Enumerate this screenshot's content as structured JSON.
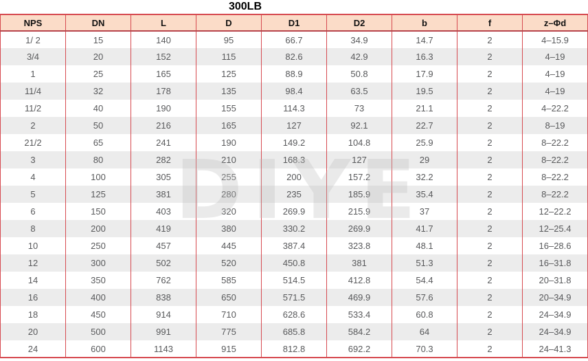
{
  "title": "300LB",
  "watermark": "DIYE",
  "colors": {
    "border_red": "#d6494f",
    "header_underline": "#b8444c",
    "header_bg": "#fbdcc8",
    "alt_row_bg": "#ececec",
    "data_text": "#58595b",
    "header_text": "#111111"
  },
  "table": {
    "headers": [
      "NPS",
      "DN",
      "L",
      "D",
      "D1",
      "D2",
      "b",
      "f",
      "z–Φd"
    ],
    "rows": [
      [
        "1/ 2",
        "15",
        "140",
        "95",
        "66.7",
        "34.9",
        "14.7",
        "2",
        "4–15.9"
      ],
      [
        "3/4",
        "20",
        "152",
        "115",
        "82.6",
        "42.9",
        "16.3",
        "2",
        "4–19"
      ],
      [
        "1",
        "25",
        "165",
        "125",
        "88.9",
        "50.8",
        "17.9",
        "2",
        "4–19"
      ],
      [
        "11/4",
        "32",
        "178",
        "135",
        "98.4",
        "63.5",
        "19.5",
        "2",
        "4–19"
      ],
      [
        "11/2",
        "40",
        "190",
        "155",
        "114.3",
        "73",
        "21.1",
        "2",
        "4–22.2"
      ],
      [
        "2",
        "50",
        "216",
        "165",
        "127",
        "92.1",
        "22.7",
        "2",
        "8–19"
      ],
      [
        "21/2",
        "65",
        "241",
        "190",
        "149.2",
        "104.8",
        "25.9",
        "2",
        "8–22.2"
      ],
      [
        "3",
        "80",
        "282",
        "210",
        "168.3",
        "127",
        "29",
        "2",
        "8–22.2"
      ],
      [
        "4",
        "100",
        "305",
        "255",
        "200",
        "157.2",
        "32.2",
        "2",
        "8–22.2"
      ],
      [
        "5",
        "125",
        "381",
        "280",
        "235",
        "185.9",
        "35.4",
        "2",
        "8–22.2"
      ],
      [
        "6",
        "150",
        "403",
        "320",
        "269.9",
        "215.9",
        "37",
        "2",
        "12–22.2"
      ],
      [
        "8",
        "200",
        "419",
        "380",
        "330.2",
        "269.9",
        "41.7",
        "2",
        "12–25.4"
      ],
      [
        "10",
        "250",
        "457",
        "445",
        "387.4",
        "323.8",
        "48.1",
        "2",
        "16–28.6"
      ],
      [
        "12",
        "300",
        "502",
        "520",
        "450.8",
        "381",
        "51.3",
        "2",
        "16–31.8"
      ],
      [
        "14",
        "350",
        "762",
        "585",
        "514.5",
        "412.8",
        "54.4",
        "2",
        "20–31.8"
      ],
      [
        "16",
        "400",
        "838",
        "650",
        "571.5",
        "469.9",
        "57.6",
        "2",
        "20–34.9"
      ],
      [
        "18",
        "450",
        "914",
        "710",
        "628.6",
        "533.4",
        "60.8",
        "2",
        "24–34.9"
      ],
      [
        "20",
        "500",
        "991",
        "775",
        "685.8",
        "584.2",
        "64",
        "2",
        "24–34.9"
      ],
      [
        "24",
        "600",
        "1143",
        "915",
        "812.8",
        "692.2",
        "70.3",
        "2",
        "24–41.3"
      ]
    ]
  }
}
